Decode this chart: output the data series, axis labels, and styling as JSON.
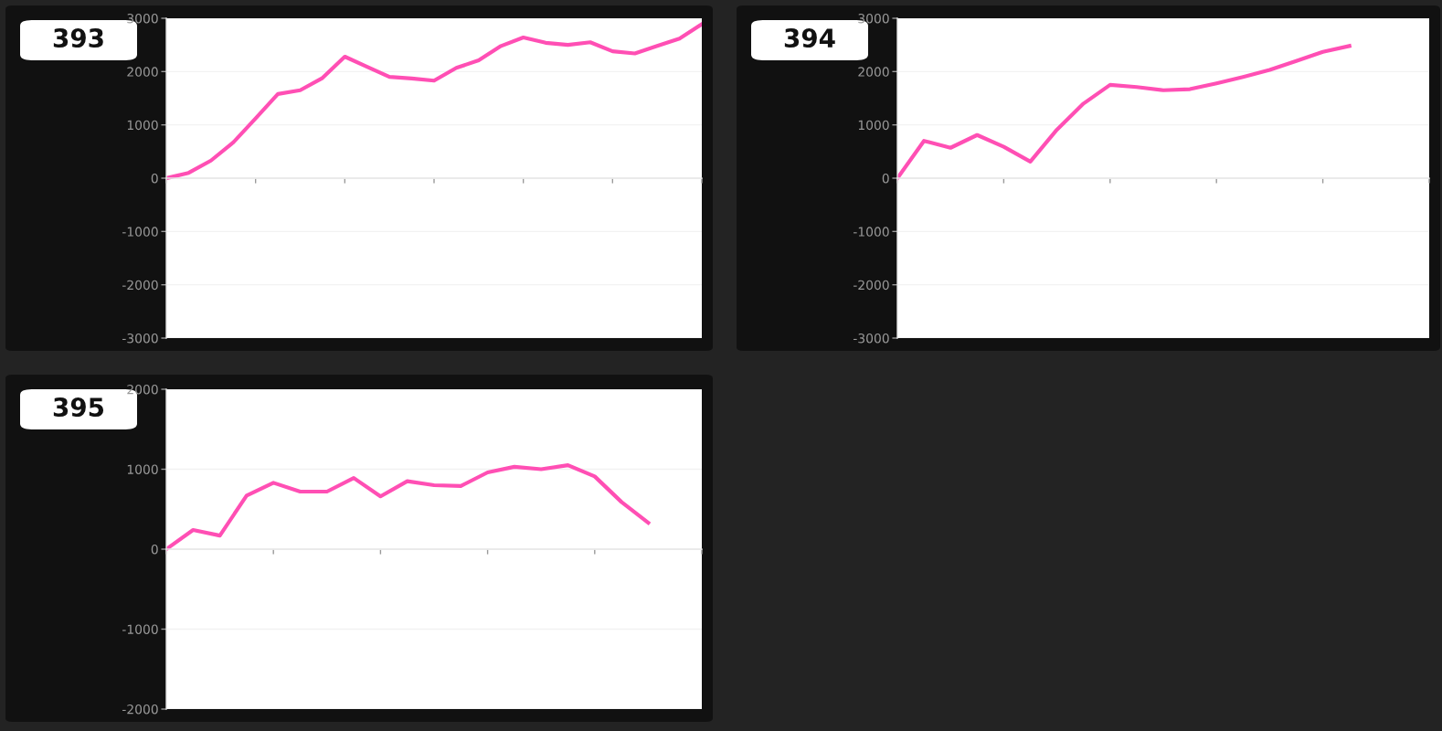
{
  "chart_data": [
    {
      "type": "line",
      "title": "393",
      "color": "#ff4fb4",
      "tick_labels": "y",
      "grid": "y",
      "marker": "none",
      "line_style": "solid",
      "ylim": [
        -3000,
        3000
      ],
      "yticks": [
        -3000,
        -2000,
        -1000,
        0,
        1000,
        2000,
        3000
      ],
      "categories": [
        null,
        null,
        null,
        null,
        null,
        null,
        null,
        null,
        null,
        null,
        null,
        null,
        null,
        null,
        null,
        null,
        null,
        null,
        null,
        null,
        null,
        null,
        null,
        null,
        null
      ],
      "values": [
        0,
        100,
        330,
        670,
        1120,
        1580,
        1650,
        1880,
        2280,
        2090,
        1900,
        1870,
        1830,
        2070,
        2210,
        2480,
        2640,
        2540,
        2500,
        2550,
        2380,
        2340,
        2480,
        2620,
        2890
      ]
    },
    {
      "type": "line",
      "title": "394",
      "color": "#ff4fb4",
      "tick_labels": "y",
      "grid": "y",
      "marker": "none",
      "line_style": "solid",
      "ylim": [
        -3000,
        3000
      ],
      "yticks": [
        -3000,
        -2000,
        -1000,
        0,
        1000,
        2000,
        3000
      ],
      "categories": [
        null,
        null,
        null,
        null,
        null,
        null,
        null,
        null,
        null,
        null,
        null,
        null,
        null,
        null,
        null,
        null,
        null,
        null,
        null,
        null,
        null
      ],
      "values": [
        0,
        700,
        570,
        810,
        590,
        310,
        910,
        1400,
        1750,
        1710,
        1650,
        1670,
        1780,
        1900,
        2030,
        2200,
        2370,
        2480,
        null,
        null,
        null
      ]
    },
    {
      "type": "line",
      "title": "395",
      "color": "#ff4fb4",
      "tick_labels": "y",
      "grid": "y",
      "marker": "none",
      "line_style": "solid",
      "ylim": [
        -2000,
        2000
      ],
      "yticks": [
        -2000,
        -1000,
        0,
        1000,
        2000
      ],
      "categories": [
        null,
        null,
        null,
        null,
        null,
        null,
        null,
        null,
        null,
        null,
        null,
        null,
        null,
        null,
        null,
        null,
        null,
        null,
        null,
        null,
        null
      ],
      "values": [
        0,
        240,
        170,
        670,
        830,
        720,
        720,
        890,
        660,
        850,
        800,
        790,
        960,
        1030,
        1000,
        1050,
        910,
        590,
        330,
        null,
        null
      ]
    }
  ]
}
